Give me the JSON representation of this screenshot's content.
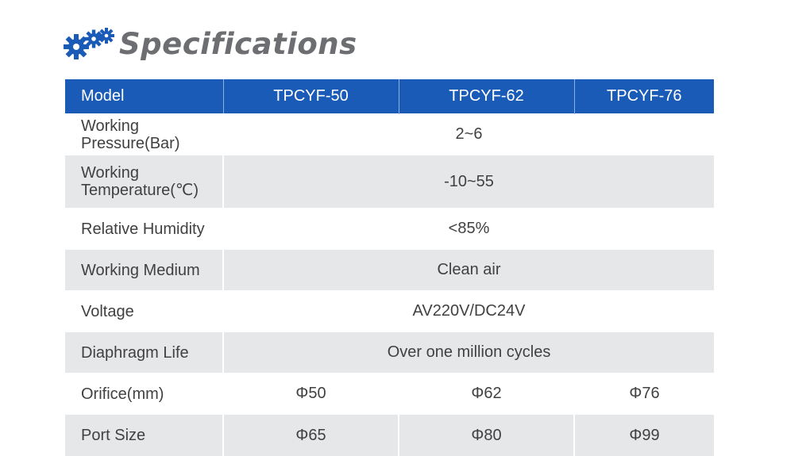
{
  "heading": {
    "title": "Specifications",
    "icon": "gears-icon",
    "icon_color": "#1a5bb8",
    "title_color": "#6d6e71"
  },
  "colors": {
    "header_bg": "#1a5bb8",
    "row_stripe": "#e6e7e8",
    "text": "#414042"
  },
  "table": {
    "header": {
      "label": "Model",
      "models": [
        "TPCYF-50",
        "TPCYF-62",
        "TPCYF-76"
      ]
    },
    "rows": {
      "pressure": {
        "label_line1": "Working",
        "label_line2": "Pressure(Bar)",
        "value": "2~6"
      },
      "temperature": {
        "label_line1": "Working",
        "label_line2": "Temperature(℃)",
        "value": "-10~55"
      },
      "humidity": {
        "label": "Relative Humidity",
        "value": "<85%"
      },
      "medium": {
        "label": "Working Medium",
        "value": "Clean air"
      },
      "voltage": {
        "label": "Voltage",
        "value": "AV220V/DC24V"
      },
      "life": {
        "label": "Diaphragm Life",
        "value": "Over one million cycles"
      },
      "orifice": {
        "label": "Orifice(mm)",
        "values": [
          "Φ50",
          "Φ62",
          "Φ76"
        ]
      },
      "port": {
        "label": "Port Size",
        "values": [
          "Φ65",
          "Φ80",
          "Φ99"
        ]
      }
    }
  }
}
